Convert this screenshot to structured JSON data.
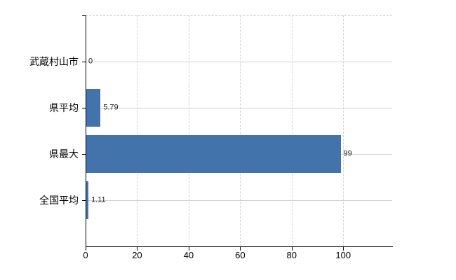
{
  "chart_data": {
    "type": "bar",
    "orientation": "horizontal",
    "title": "",
    "xlabel": "",
    "ylabel": "",
    "categories": [
      "武蔵村山市",
      "県平均",
      "県最大",
      "全国平均"
    ],
    "values": [
      0,
      5.79,
      99,
      1.11
    ],
    "data_labels": [
      "0",
      "5.79",
      "99",
      "1.11"
    ],
    "x_ticks": [
      0,
      20,
      40,
      60,
      80,
      100
    ],
    "x_tick_labels": [
      "0",
      "20",
      "40",
      "60",
      "80",
      "100"
    ],
    "xlim": [
      0,
      119
    ],
    "grid": true,
    "legend": false,
    "colors": {
      "bar": "#4273aa",
      "grid": "#ccd5cc",
      "frame_dash": "#c9cdc9",
      "axis": "#000000",
      "text": "#000000",
      "data_label_text": "#1a1a1a",
      "background": "#ffffff"
    }
  }
}
